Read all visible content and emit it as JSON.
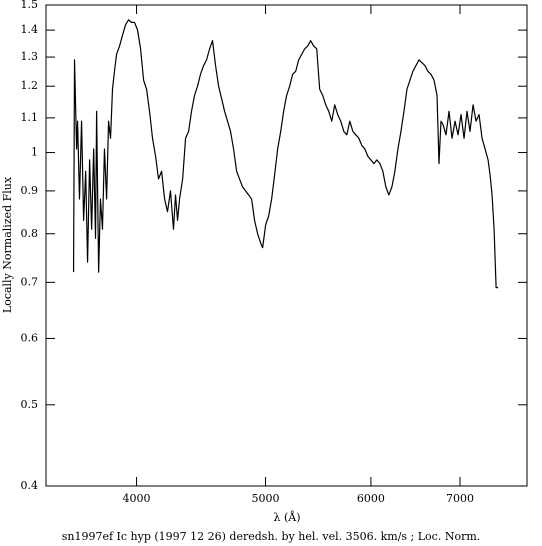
{
  "chart_data": {
    "type": "line",
    "log_x": true,
    "log_y": true,
    "caption": "sn1997ef Ic hyp (1997 12 26) deredsh. by hel. vel.  3506. km/s ;  Loc. Norm.",
    "xlabel": "λ (Å)",
    "ylabel": "Locally Normalized Flux",
    "xlim": [
      3420,
      7860
    ],
    "ylim": [
      0.4,
      1.5
    ],
    "xticks": [
      4000,
      5000,
      6000,
      7000
    ],
    "yticks": [
      0.4,
      0.5,
      0.6,
      0.7,
      0.8,
      0.9,
      1,
      1.1,
      1.2,
      1.3,
      1.4,
      1.5
    ],
    "series": [
      {
        "color": "#000000",
        "x": [
          3587,
          3593,
          3606,
          3612,
          3624,
          3637,
          3650,
          3663,
          3675,
          3688,
          3701,
          3714,
          3726,
          3733,
          3746,
          3758,
          3771,
          3784,
          3798,
          3811,
          3824,
          3837,
          3850,
          3864,
          3884,
          3904,
          3924,
          3945,
          3965,
          3986,
          4007,
          4028,
          4049,
          4070,
          4091,
          4112,
          4134,
          4155,
          4177,
          4199,
          4220,
          4242,
          4264,
          4279,
          4294,
          4309,
          4332,
          4354,
          4377,
          4399,
          4422,
          4445,
          4468,
          4492,
          4515,
          4539,
          4562,
          4586,
          4610,
          4634,
          4658,
          4682,
          4706,
          4731,
          4756,
          4780,
          4805,
          4830,
          4856,
          4881,
          4906,
          4932,
          4958,
          4975,
          5001,
          5027,
          5053,
          5079,
          5106,
          5133,
          5159,
          5186,
          5213,
          5240,
          5268,
          5295,
          5323,
          5351,
          5378,
          5406,
          5435,
          5463,
          5491,
          5520,
          5549,
          5578,
          5607,
          5636,
          5665,
          5695,
          5725,
          5755,
          5785,
          5815,
          5845,
          5876,
          5906,
          5937,
          5968,
          5999,
          6031,
          6062,
          6094,
          6125,
          6157,
          6189,
          6222,
          6254,
          6287,
          6320,
          6353,
          6386,
          6419,
          6452,
          6486,
          6520,
          6554,
          6588,
          6622,
          6657,
          6692,
          6727,
          6750,
          6773,
          6797,
          6832,
          6868,
          6904,
          6940,
          6976,
          7012,
          7049,
          7085,
          7122,
          7160,
          7197,
          7234,
          7272,
          7310,
          7348,
          7374,
          7399,
          7425,
          7451,
          7477
        ],
        "values": [
          0.72,
          1.29,
          1.01,
          1.09,
          0.88,
          1.09,
          0.83,
          0.95,
          0.74,
          0.98,
          0.81,
          1.01,
          0.79,
          1.12,
          0.72,
          0.88,
          0.81,
          1.01,
          0.88,
          1.09,
          1.04,
          1.19,
          1.25,
          1.31,
          1.34,
          1.38,
          1.42,
          1.44,
          1.43,
          1.43,
          1.4,
          1.33,
          1.22,
          1.19,
          1.12,
          1.04,
          0.99,
          0.93,
          0.95,
          0.88,
          0.85,
          0.9,
          0.81,
          0.89,
          0.83,
          0.88,
          0.93,
          1.04,
          1.06,
          1.12,
          1.17,
          1.2,
          1.24,
          1.27,
          1.29,
          1.33,
          1.36,
          1.27,
          1.2,
          1.16,
          1.12,
          1.09,
          1.06,
          1.01,
          0.95,
          0.93,
          0.91,
          0.9,
          0.89,
          0.88,
          0.83,
          0.8,
          0.78,
          0.77,
          0.82,
          0.84,
          0.88,
          0.94,
          1.01,
          1.06,
          1.12,
          1.17,
          1.2,
          1.24,
          1.25,
          1.29,
          1.31,
          1.33,
          1.34,
          1.36,
          1.34,
          1.33,
          1.19,
          1.17,
          1.14,
          1.12,
          1.09,
          1.14,
          1.11,
          1.09,
          1.06,
          1.05,
          1.09,
          1.06,
          1.05,
          1.04,
          1.02,
          1.01,
          0.99,
          0.98,
          0.97,
          0.98,
          0.97,
          0.95,
          0.91,
          0.89,
          0.91,
          0.95,
          1.01,
          1.06,
          1.12,
          1.19,
          1.22,
          1.25,
          1.27,
          1.29,
          1.28,
          1.27,
          1.25,
          1.24,
          1.22,
          1.17,
          0.97,
          1.09,
          1.08,
          1.05,
          1.12,
          1.04,
          1.09,
          1.05,
          1.11,
          1.04,
          1.12,
          1.06,
          1.14,
          1.09,
          1.11,
          1.04,
          1.01,
          0.98,
          0.94,
          0.89,
          0.81,
          0.69,
          0.69
        ]
      }
    ]
  }
}
